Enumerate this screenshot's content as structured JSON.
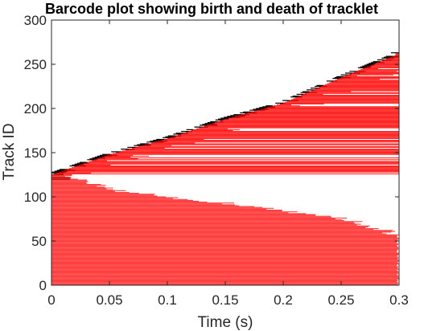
{
  "chart_data": {
    "type": "barcode",
    "title": "Barcode plot showing birth and death of tracklet",
    "xlabel": "Time (s)",
    "ylabel": "Track ID",
    "xlim": [
      0,
      0.3
    ],
    "ylim": [
      0,
      300
    ],
    "xticks": [
      0,
      0.05,
      0.1,
      0.15,
      0.2,
      0.25,
      0.3
    ],
    "xtick_labels": [
      "0",
      "0.05",
      "0.1",
      "0.15",
      "0.2",
      "0.25",
      "0.3"
    ],
    "yticks": [
      0,
      50,
      100,
      150,
      200,
      250,
      300
    ],
    "ytick_labels": [
      "0",
      "50",
      "100",
      "150",
      "200",
      "250",
      "300"
    ],
    "grid": false,
    "colors": {
      "persistent_track": "#ff0000",
      "short_track": "#000000",
      "axis": "#262626"
    },
    "tracks_approx": {
      "count": 262,
      "birth_time_vs_id": [
        [
          0,
          1
        ],
        [
          0.0,
          125
        ],
        [
          0.05,
          148
        ],
        [
          0.1,
          166
        ],
        [
          0.15,
          188
        ],
        [
          0.2,
          206
        ],
        [
          0.25,
          235
        ],
        [
          0.3,
          262
        ]
      ],
      "death_time_vs_id": [
        [
          0.3,
          1
        ],
        [
          0.3,
          57
        ],
        [
          0.25,
          77
        ],
        [
          0.2,
          84
        ],
        [
          0.15,
          93
        ],
        [
          0.1,
          100
        ],
        [
          0.05,
          108
        ],
        [
          0.02,
          120
        ],
        [
          0.01,
          125
        ]
      ],
      "note_series": [
        {
          "name": "long tracks",
          "end_time": 0.3
        },
        {
          "name": "short tracks",
          "duration": 0.005
        }
      ]
    }
  }
}
